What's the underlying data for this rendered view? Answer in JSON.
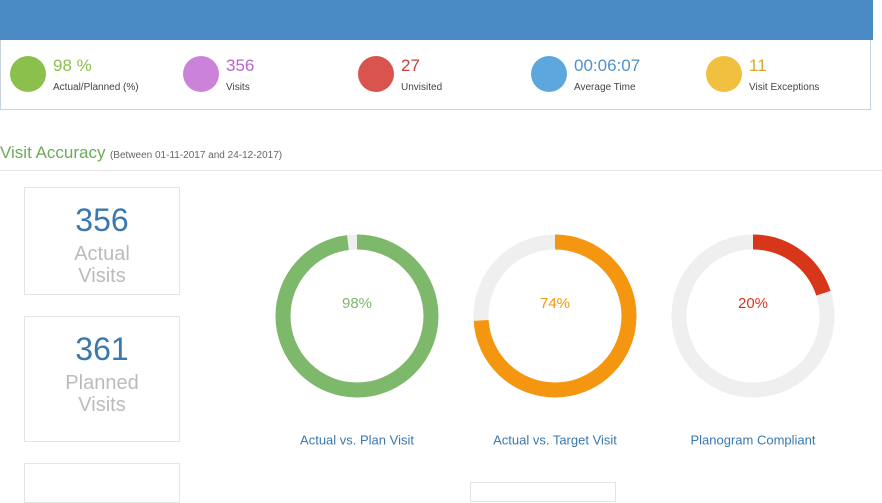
{
  "kpis": [
    {
      "value": "98 %",
      "label": "Actual/Planned (%)"
    },
    {
      "value": "356",
      "label": "Visits"
    },
    {
      "value": "27",
      "label": "Unvisited"
    },
    {
      "value": "00:06:07",
      "label": "Average Time"
    },
    {
      "value": "11",
      "label": "Visit Exceptions"
    }
  ],
  "section": {
    "title": "Visit Accuracy",
    "subtitle": "(Between 01-11-2017 and 24-12-2017)"
  },
  "cards": [
    {
      "value": "356",
      "label": "Actual Visits"
    },
    {
      "value": "361",
      "label": "Planned Visits"
    }
  ],
  "gauges": [
    {
      "value": 98,
      "label": "98%",
      "title": "Actual vs. Plan Visit",
      "color": "#7db86b"
    },
    {
      "value": 74,
      "label": "74%",
      "title": "Actual vs. Target Visit",
      "color": "#f4960f"
    },
    {
      "value": 20,
      "label": "20%",
      "title": "Planogram Compliant",
      "color": "#d8361a"
    }
  ]
}
